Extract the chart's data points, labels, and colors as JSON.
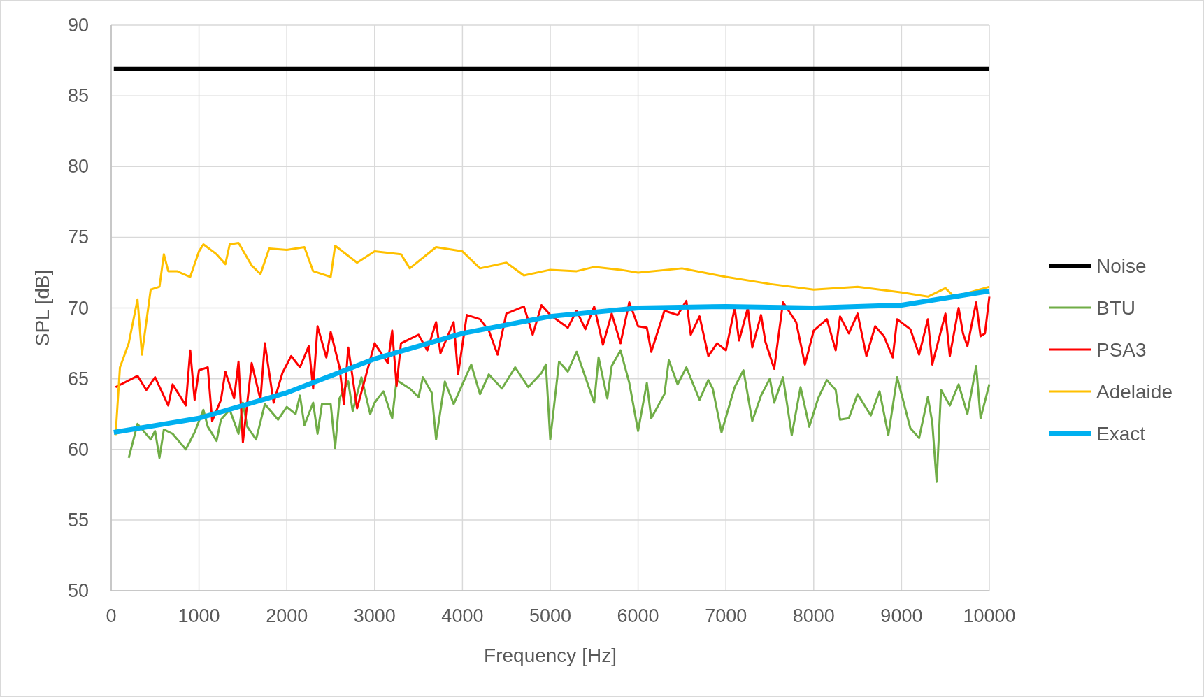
{
  "chart_data": {
    "type": "line",
    "xlabel": "Frequency [Hz]",
    "ylabel": "SPL [dB]",
    "xlim": [
      0,
      10000
    ],
    "xticks": [
      0,
      1000,
      2000,
      3000,
      4000,
      5000,
      6000,
      7000,
      8000,
      9000,
      10000
    ],
    "ylim": [
      50,
      90
    ],
    "yticks": [
      50,
      55,
      60,
      65,
      70,
      75,
      80,
      85,
      90
    ],
    "grid": true,
    "legend": "right",
    "marker": "none",
    "series": [
      {
        "name": "Noise",
        "color": "#000000",
        "x": [
          30,
          10000
        ],
        "values": [
          86.9,
          86.9
        ]
      },
      {
        "name": "BTU",
        "color": "#70ad47",
        "x": [
          200,
          300,
          450,
          500,
          550,
          600,
          700,
          850,
          950,
          1050,
          1100,
          1200,
          1250,
          1350,
          1450,
          1500,
          1550,
          1650,
          1750,
          1900,
          2000,
          2100,
          2150,
          2200,
          2300,
          2350,
          2400,
          2500,
          2550,
          2600,
          2700,
          2750,
          2850,
          2950,
          3000,
          3100,
          3200,
          3250,
          3400,
          3500,
          3550,
          3650,
          3700,
          3800,
          3900,
          4000,
          4100,
          4200,
          4300,
          4450,
          4600,
          4750,
          4900,
          4950,
          5000,
          5100,
          5200,
          5300,
          5400,
          5500,
          5550,
          5650,
          5700,
          5800,
          5900,
          6000,
          6100,
          6150,
          6300,
          6350,
          6450,
          6550,
          6700,
          6800,
          6850,
          6950,
          7100,
          7200,
          7300,
          7400,
          7500,
          7550,
          7650,
          7750,
          7850,
          7950,
          8050,
          8150,
          8250,
          8300,
          8400,
          8500,
          8650,
          8750,
          8850,
          8950,
          9100,
          9200,
          9300,
          9350,
          9400,
          9450,
          9550,
          9650,
          9750,
          9850,
          9900,
          10000
        ],
        "values": [
          59.4,
          61.8,
          60.7,
          61.3,
          59.4,
          61.4,
          61.1,
          60,
          61.2,
          62.8,
          61.6,
          60.6,
          62.1,
          62.8,
          61.1,
          63.3,
          61.6,
          60.7,
          63.2,
          62.1,
          63,
          62.5,
          63.8,
          61.7,
          63.3,
          61.1,
          63.2,
          63.2,
          60.1,
          63.6,
          64.8,
          62.7,
          65.1,
          62.5,
          63.3,
          64.1,
          62.2,
          64.9,
          64.3,
          63.7,
          65.1,
          64,
          60.7,
          64.8,
          63.2,
          64.6,
          66,
          63.9,
          65.3,
          64.3,
          65.8,
          64.4,
          65.4,
          66,
          60.7,
          66.2,
          65.5,
          66.9,
          65.1,
          63.3,
          66.5,
          63.6,
          65.9,
          67,
          64.7,
          61.3,
          64.7,
          62.2,
          63.9,
          66.3,
          64.6,
          65.8,
          63.5,
          64.9,
          64.3,
          61.2,
          64.4,
          65.6,
          62,
          63.8,
          65,
          63.3,
          65.1,
          61,
          64.4,
          61.6,
          63.6,
          64.9,
          64.2,
          62.1,
          62.2,
          63.9,
          62.4,
          64.1,
          61,
          65.1,
          61.5,
          60.8,
          63.7,
          61.9,
          57.7,
          64.2,
          63.1,
          64.6,
          62.5,
          65.9,
          62.2,
          64.6
        ]
      },
      {
        "name": "PSA3",
        "color": "#ff0000",
        "x": [
          50,
          300,
          400,
          500,
          650,
          700,
          850,
          900,
          950,
          1000,
          1100,
          1150,
          1250,
          1300,
          1400,
          1450,
          1500,
          1600,
          1700,
          1750,
          1850,
          1950,
          2050,
          2150,
          2250,
          2300,
          2350,
          2450,
          2500,
          2600,
          2650,
          2700,
          2800,
          3000,
          3150,
          3200,
          3250,
          3300,
          3500,
          3600,
          3700,
          3750,
          3900,
          3950,
          4050,
          4200,
          4300,
          4400,
          4500,
          4700,
          4800,
          4900,
          5000,
          5200,
          5300,
          5400,
          5500,
          5600,
          5700,
          5800,
          5900,
          6000,
          6100,
          6150,
          6300,
          6450,
          6550,
          6600,
          6700,
          6800,
          6900,
          7000,
          7100,
          7150,
          7250,
          7300,
          7400,
          7450,
          7550,
          7650,
          7800,
          7900,
          8000,
          8150,
          8250,
          8300,
          8400,
          8500,
          8600,
          8700,
          8800,
          8900,
          8950,
          9100,
          9200,
          9300,
          9350,
          9500,
          9550,
          9650,
          9700,
          9750,
          9850,
          9900,
          9950,
          10000
        ],
        "values": [
          64.4,
          65.2,
          64.2,
          65.1,
          63.1,
          64.6,
          63.1,
          67,
          63.5,
          65.6,
          65.8,
          62,
          63.5,
          65.5,
          63.6,
          66.2,
          60.5,
          66.1,
          63.5,
          67.5,
          63.3,
          65.4,
          66.6,
          65.8,
          67.3,
          64.3,
          68.7,
          66.5,
          68.3,
          65.8,
          63.2,
          67.2,
          62.9,
          67.5,
          66.1,
          68.4,
          64.5,
          67.5,
          68.1,
          67,
          69,
          66.8,
          69,
          65.3,
          69.5,
          69.2,
          68.4,
          66.7,
          69.6,
          70.1,
          68.1,
          70.2,
          69.5,
          68.6,
          69.8,
          68.5,
          70.1,
          67.4,
          69.6,
          67.5,
          70.4,
          68.7,
          68.6,
          66.9,
          69.8,
          69.5,
          70.5,
          68.1,
          69.4,
          66.6,
          67.5,
          67,
          70,
          67.7,
          70,
          67.2,
          69.5,
          67.6,
          65.7,
          70.4,
          69,
          66,
          68.4,
          69.2,
          67,
          69.4,
          68.2,
          69.6,
          66.6,
          68.7,
          68,
          66.5,
          69.2,
          68.5,
          66.7,
          69.2,
          66,
          69.6,
          66.6,
          70,
          68.2,
          67.3,
          70.4,
          68,
          68.2,
          70.8
        ]
      },
      {
        "name": "Adelaide",
        "color": "#ffc000",
        "x": [
          50,
          100,
          200,
          300,
          350,
          450,
          550,
          600,
          650,
          750,
          900,
          1000,
          1050,
          1200,
          1300,
          1350,
          1450,
          1600,
          1700,
          1800,
          2000,
          2200,
          2300,
          2500,
          2550,
          2800,
          3000,
          3300,
          3400,
          3700,
          4000,
          4200,
          4500,
          4700,
          5000,
          5300,
          5500,
          5800,
          6000,
          6500,
          7000,
          7500,
          8000,
          8500,
          9000,
          9300,
          9500,
          9600,
          10000
        ],
        "values": [
          61,
          65.8,
          67.5,
          70.6,
          66.7,
          71.3,
          71.5,
          73.8,
          72.6,
          72.6,
          72.2,
          74,
          74.5,
          73.8,
          73.1,
          74.5,
          74.6,
          73,
          72.4,
          74.2,
          74.1,
          74.3,
          72.6,
          72.2,
          74.4,
          73.2,
          74,
          73.8,
          72.8,
          74.3,
          74,
          72.8,
          73.2,
          72.3,
          72.7,
          72.6,
          72.9,
          72.7,
          72.5,
          72.8,
          72.2,
          71.7,
          71.3,
          71.5,
          71.1,
          70.8,
          71.4,
          70.8,
          71.5
        ]
      },
      {
        "name": "Exact",
        "color": "#00b0f0",
        "x": [
          30,
          1000,
          2000,
          3000,
          4000,
          5000,
          6000,
          7000,
          8000,
          9000,
          10000
        ],
        "values": [
          61.2,
          62.2,
          64,
          66.4,
          68.2,
          69.4,
          70,
          70.1,
          70,
          70.2,
          71.2
        ]
      }
    ]
  }
}
